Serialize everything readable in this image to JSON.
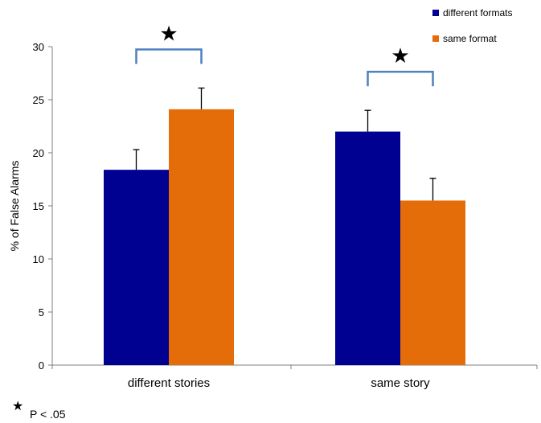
{
  "chart_data": {
    "type": "bar",
    "ylabel": "% of False Alarms",
    "xlabel": "",
    "ylim": [
      0,
      30
    ],
    "yticks": [
      0,
      5,
      10,
      15,
      20,
      25,
      30
    ],
    "categories": [
      "different stories",
      "same story"
    ],
    "series": [
      {
        "name": "different formats",
        "color": "#000091",
        "values": [
          18.4,
          22.0
        ],
        "errors": [
          1.9,
          2.0
        ]
      },
      {
        "name": "same format",
        "color": "#e46d0a",
        "values": [
          24.1,
          15.5
        ],
        "errors": [
          2.0,
          2.1
        ]
      }
    ],
    "legend_position": "top-right",
    "significance_marker": "★",
    "significance_note": "P < .05",
    "bracket_color": "#4f81bd",
    "error_bar_color": "#000000"
  }
}
